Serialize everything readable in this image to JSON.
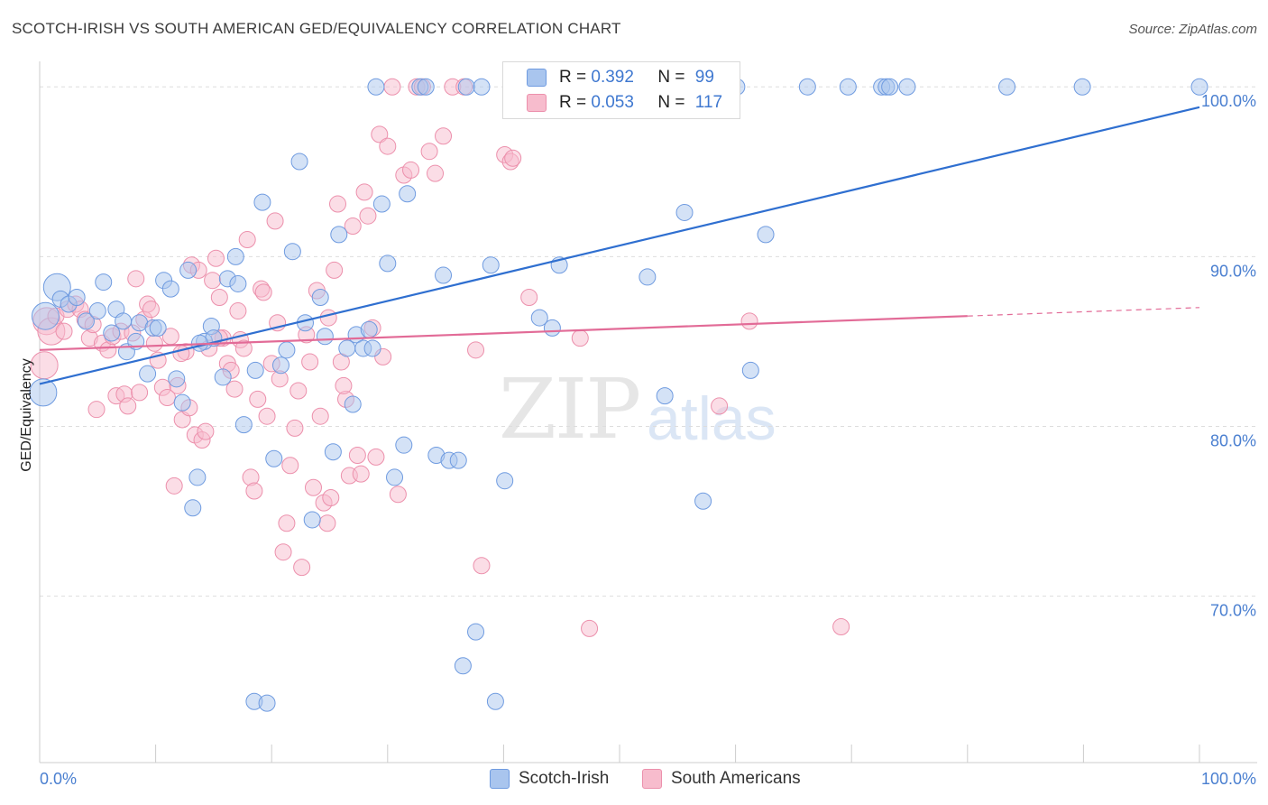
{
  "header": {
    "title": "SCOTCH-IRISH VS SOUTH AMERICAN GED/EQUIVALENCY CORRELATION CHART",
    "source": "Source: ZipAtlas.com"
  },
  "watermark": {
    "zip": "ZIP",
    "atlas": "atlas"
  },
  "legend": {
    "series1": {
      "r_label": "R =",
      "r_value": "0.392",
      "n_label": "N =",
      "n_value": "99"
    },
    "series2": {
      "r_label": "R =",
      "r_value": "0.053",
      "n_label": "N =",
      "n_value": "117"
    }
  },
  "bottom_legend": {
    "series1": "Scotch-Irish",
    "series2": "South Americans"
  },
  "colors": {
    "blue_fill": "#a9c5ee",
    "blue_stroke": "#6f9be0",
    "blue_line": "#2f6fd0",
    "pink_fill": "#f7bccd",
    "pink_stroke": "#ec90ac",
    "pink_line": "#e26b97",
    "tick_text": "#4a7fd0",
    "grid": "#dddddd"
  },
  "chart_data": {
    "type": "scatter",
    "title": "SCOTCH-IRISH VS SOUTH AMERICAN GED/EQUIVALENCY CORRELATION CHART",
    "xlabel": "",
    "ylabel": "GED/Equivalency",
    "xlim": [
      0,
      100
    ],
    "ylim": [
      60.2,
      101.5
    ],
    "x_tick_labels": [
      "0.0%",
      "100.0%"
    ],
    "y_ticks": [
      70,
      80,
      90,
      100
    ],
    "y_tick_labels": [
      "70.0%",
      "80.0%",
      "90.0%",
      "100.0%"
    ],
    "grid": true,
    "series": [
      {
        "name": "Scotch-Irish",
        "R": 0.392,
        "N": 99,
        "trend": {
          "x": [
            0,
            100
          ],
          "y": [
            82.5,
            98.8
          ]
        },
        "points": [
          [
            0.3,
            82.0
          ],
          [
            0.5,
            86.5
          ],
          [
            1.5,
            88.2
          ],
          [
            1.8,
            87.5
          ],
          [
            2.5,
            87.2
          ],
          [
            3.2,
            87.6
          ],
          [
            4.0,
            86.2
          ],
          [
            5.0,
            86.8
          ],
          [
            5.5,
            88.5
          ],
          [
            6.2,
            85.5
          ],
          [
            6.6,
            86.9
          ],
          [
            7.2,
            86.2
          ],
          [
            7.5,
            84.4
          ],
          [
            8.3,
            85.0
          ],
          [
            8.6,
            86.1
          ],
          [
            9.3,
            83.1
          ],
          [
            9.8,
            85.8
          ],
          [
            10.2,
            85.8
          ],
          [
            10.7,
            88.6
          ],
          [
            11.3,
            88.1
          ],
          [
            11.8,
            82.8
          ],
          [
            12.3,
            81.4
          ],
          [
            12.8,
            89.2
          ],
          [
            13.2,
            75.2
          ],
          [
            13.6,
            77.0
          ],
          [
            14.2,
            85.0
          ],
          [
            14.8,
            85.9
          ],
          [
            15.0,
            85.2
          ],
          [
            15.8,
            82.9
          ],
          [
            16.2,
            88.7
          ],
          [
            16.9,
            90.0
          ],
          [
            17.1,
            88.4
          ],
          [
            17.6,
            80.1
          ],
          [
            18.5,
            63.8
          ],
          [
            18.6,
            83.3
          ],
          [
            19.2,
            93.2
          ],
          [
            19.6,
            63.7
          ],
          [
            20.2,
            78.1
          ],
          [
            20.8,
            83.6
          ],
          [
            21.3,
            84.5
          ],
          [
            21.8,
            90.3
          ],
          [
            22.4,
            95.6
          ],
          [
            22.9,
            86.1
          ],
          [
            23.5,
            74.5
          ],
          [
            24.2,
            87.6
          ],
          [
            24.6,
            85.3
          ],
          [
            25.3,
            78.5
          ],
          [
            25.8,
            91.3
          ],
          [
            26.5,
            84.6
          ],
          [
            27.0,
            81.3
          ],
          [
            27.3,
            85.4
          ],
          [
            27.9,
            84.6
          ],
          [
            28.4,
            85.7
          ],
          [
            28.7,
            84.6
          ],
          [
            29.0,
            100.0
          ],
          [
            29.5,
            93.1
          ],
          [
            30.0,
            89.6
          ],
          [
            30.6,
            77.0
          ],
          [
            31.4,
            78.9
          ],
          [
            31.7,
            93.7
          ],
          [
            32.8,
            100.0
          ],
          [
            33.3,
            100.0
          ],
          [
            34.2,
            78.3
          ],
          [
            34.8,
            88.9
          ],
          [
            35.3,
            78.0
          ],
          [
            36.1,
            78.0
          ],
          [
            36.8,
            100.0
          ],
          [
            37.6,
            67.9
          ],
          [
            38.1,
            100.0
          ],
          [
            38.9,
            89.5
          ],
          [
            39.3,
            63.8
          ],
          [
            40.1,
            76.8
          ],
          [
            41.6,
            100.0
          ],
          [
            43.1,
            86.4
          ],
          [
            44.2,
            85.8
          ],
          [
            44.8,
            89.5
          ],
          [
            49.7,
            100.0
          ],
          [
            50.5,
            100.0
          ],
          [
            50.9,
            100.0
          ],
          [
            52.4,
            88.8
          ],
          [
            53.9,
            81.8
          ],
          [
            55.6,
            92.6
          ],
          [
            56.1,
            100.0
          ],
          [
            57.2,
            75.6
          ],
          [
            57.9,
            100.0
          ],
          [
            60.1,
            100.0
          ],
          [
            61.3,
            83.3
          ],
          [
            62.6,
            91.3
          ],
          [
            66.2,
            100.0
          ],
          [
            69.7,
            100.0
          ],
          [
            72.6,
            100.0
          ],
          [
            73.0,
            100.0
          ],
          [
            73.3,
            100.0
          ],
          [
            74.8,
            100.0
          ],
          [
            83.4,
            100.0
          ],
          [
            89.9,
            100.0
          ],
          [
            100.0,
            100.0
          ],
          [
            36.5,
            65.9
          ],
          [
            13.8,
            84.9
          ]
        ]
      },
      {
        "name": "South Americans",
        "R": 0.053,
        "N": 117,
        "trend": {
          "x": [
            0,
            80
          ],
          "y": [
            84.5,
            86.5
          ],
          "dashed_x": [
            80,
            100
          ],
          "dashed_y": [
            86.5,
            87.0
          ]
        },
        "points": [
          [
            0.4,
            83.6
          ],
          [
            0.6,
            86.2
          ],
          [
            1.0,
            85.6
          ],
          [
            1.4,
            86.5
          ],
          [
            2.1,
            85.6
          ],
          [
            2.4,
            86.9
          ],
          [
            3.1,
            87.2
          ],
          [
            3.5,
            86.9
          ],
          [
            3.9,
            86.3
          ],
          [
            4.3,
            85.2
          ],
          [
            4.6,
            86.0
          ],
          [
            4.9,
            81.0
          ],
          [
            5.4,
            84.9
          ],
          [
            5.9,
            84.5
          ],
          [
            6.3,
            85.3
          ],
          [
            6.6,
            81.8
          ],
          [
            7.0,
            85.6
          ],
          [
            7.3,
            81.9
          ],
          [
            7.6,
            81.2
          ],
          [
            8.0,
            85.5
          ],
          [
            8.3,
            88.7
          ],
          [
            8.6,
            82.0
          ],
          [
            9.0,
            86.3
          ],
          [
            9.3,
            87.2
          ],
          [
            9.6,
            86.9
          ],
          [
            9.9,
            84.9
          ],
          [
            10.2,
            83.9
          ],
          [
            10.6,
            82.3
          ],
          [
            11.0,
            81.7
          ],
          [
            11.3,
            85.3
          ],
          [
            11.6,
            76.5
          ],
          [
            11.9,
            82.4
          ],
          [
            12.3,
            80.4
          ],
          [
            12.6,
            84.4
          ],
          [
            12.9,
            81.1
          ],
          [
            13.1,
            89.5
          ],
          [
            13.4,
            79.5
          ],
          [
            13.7,
            89.2
          ],
          [
            14.0,
            79.2
          ],
          [
            14.3,
            79.7
          ],
          [
            14.6,
            84.6
          ],
          [
            14.9,
            88.6
          ],
          [
            15.2,
            89.9
          ],
          [
            15.5,
            87.6
          ],
          [
            15.8,
            85.2
          ],
          [
            16.2,
            83.7
          ],
          [
            16.5,
            83.3
          ],
          [
            16.8,
            82.2
          ],
          [
            17.1,
            86.8
          ],
          [
            17.3,
            85.1
          ],
          [
            17.6,
            84.6
          ],
          [
            17.9,
            91.0
          ],
          [
            18.2,
            77.0
          ],
          [
            18.5,
            76.2
          ],
          [
            18.8,
            81.6
          ],
          [
            19.1,
            88.1
          ],
          [
            19.3,
            87.9
          ],
          [
            19.6,
            80.6
          ],
          [
            20.0,
            83.7
          ],
          [
            20.3,
            92.1
          ],
          [
            20.7,
            82.8
          ],
          [
            21.0,
            72.6
          ],
          [
            21.3,
            74.3
          ],
          [
            21.6,
            77.7
          ],
          [
            22.0,
            79.9
          ],
          [
            22.3,
            82.1
          ],
          [
            22.6,
            71.7
          ],
          [
            23.0,
            85.4
          ],
          [
            23.3,
            83.8
          ],
          [
            23.6,
            76.4
          ],
          [
            23.9,
            88.0
          ],
          [
            24.2,
            80.6
          ],
          [
            24.5,
            75.5
          ],
          [
            24.8,
            74.3
          ],
          [
            25.1,
            75.8
          ],
          [
            25.4,
            89.2
          ],
          [
            25.7,
            93.1
          ],
          [
            26.0,
            83.8
          ],
          [
            26.4,
            81.6
          ],
          [
            26.7,
            77.1
          ],
          [
            27.0,
            91.8
          ],
          [
            27.4,
            78.3
          ],
          [
            27.7,
            77.2
          ],
          [
            28.0,
            93.8
          ],
          [
            28.3,
            92.4
          ],
          [
            28.7,
            85.8
          ],
          [
            29.0,
            78.2
          ],
          [
            29.3,
            97.2
          ],
          [
            29.6,
            84.1
          ],
          [
            30.0,
            96.5
          ],
          [
            30.4,
            100.0
          ],
          [
            30.9,
            76.0
          ],
          [
            31.4,
            94.8
          ],
          [
            32.0,
            95.1
          ],
          [
            32.5,
            100.0
          ],
          [
            33.0,
            100.0
          ],
          [
            33.6,
            96.2
          ],
          [
            34.1,
            94.9
          ],
          [
            34.8,
            97.1
          ],
          [
            35.6,
            100.0
          ],
          [
            36.6,
            100.0
          ],
          [
            37.6,
            84.5
          ],
          [
            38.1,
            71.8
          ],
          [
            40.1,
            96.0
          ],
          [
            40.6,
            95.6
          ],
          [
            40.8,
            95.8
          ],
          [
            42.2,
            87.6
          ],
          [
            46.6,
            85.2
          ],
          [
            47.4,
            68.1
          ],
          [
            58.6,
            81.2
          ],
          [
            61.2,
            86.2
          ],
          [
            69.1,
            68.2
          ],
          [
            12.2,
            84.3
          ],
          [
            24.9,
            86.4
          ],
          [
            15.5,
            85.2
          ],
          [
            20.5,
            86.1
          ],
          [
            26.2,
            82.4
          ]
        ]
      }
    ]
  }
}
